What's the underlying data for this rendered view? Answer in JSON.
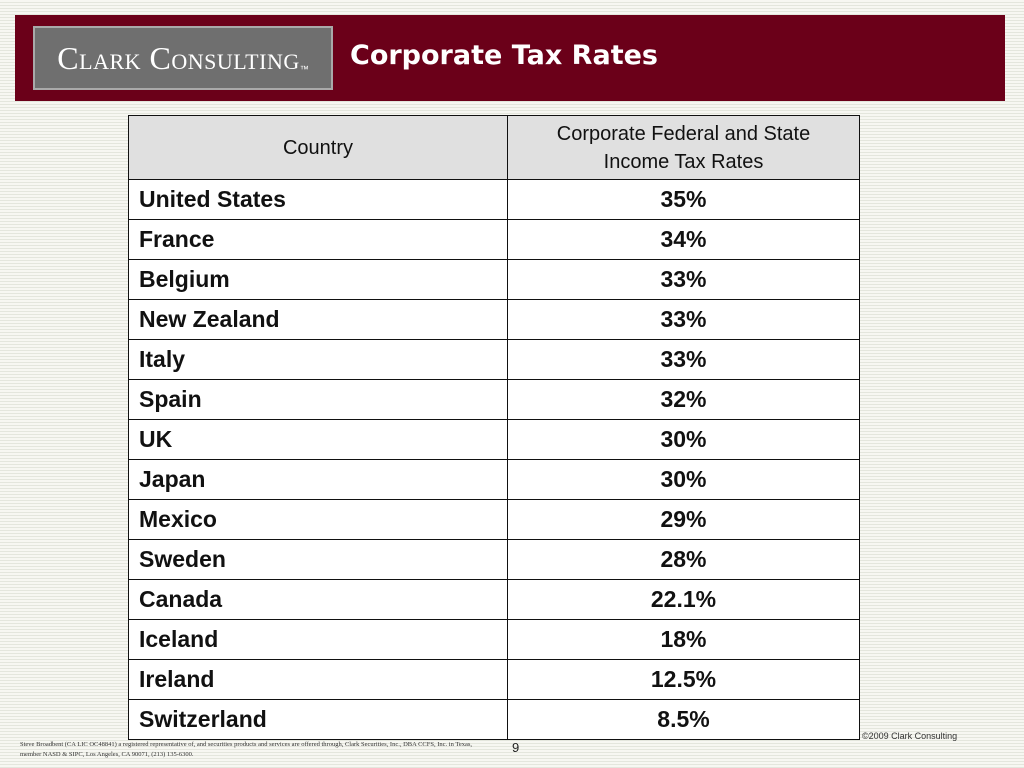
{
  "header": {
    "logo_text": "Clark Consulting",
    "logo_mark": "™",
    "title": "Corporate Tax Rates",
    "band_color": "#6b0019"
  },
  "table": {
    "columns": [
      "Country",
      "Corporate Federal and State Income Tax Rates"
    ],
    "rows": [
      {
        "country": "United States",
        "rate": "35%"
      },
      {
        "country": "France",
        "rate": "34%"
      },
      {
        "country": "Belgium",
        "rate": "33%"
      },
      {
        "country": "New Zealand",
        "rate": "33%"
      },
      {
        "country": "Italy",
        "rate": "33%"
      },
      {
        "country": "Spain",
        "rate": "32%"
      },
      {
        "country": "UK",
        "rate": "30%"
      },
      {
        "country": "Japan",
        "rate": "30%"
      },
      {
        "country": "Mexico",
        "rate": "29%"
      },
      {
        "country": "Sweden",
        "rate": "28%"
      },
      {
        "country": "Canada",
        "rate": "22.1%"
      },
      {
        "country": "Iceland",
        "rate": "18%"
      },
      {
        "country": "Ireland",
        "rate": "12.5%"
      },
      {
        "country": "Switzerland",
        "rate": "8.5%"
      }
    ]
  },
  "footer": {
    "disclaimer": "Steve Broadbent (CA LIC OC48841) a registered representative of, and securities products and services are offered through, Clark Securities, Inc., DBA CCFS, Inc. in Texas, member NASD & SIPC, Los Angeles, CA 90071, (213) 135-6300.",
    "page_number": "9",
    "copyright": "©2009 Clark Consulting"
  }
}
